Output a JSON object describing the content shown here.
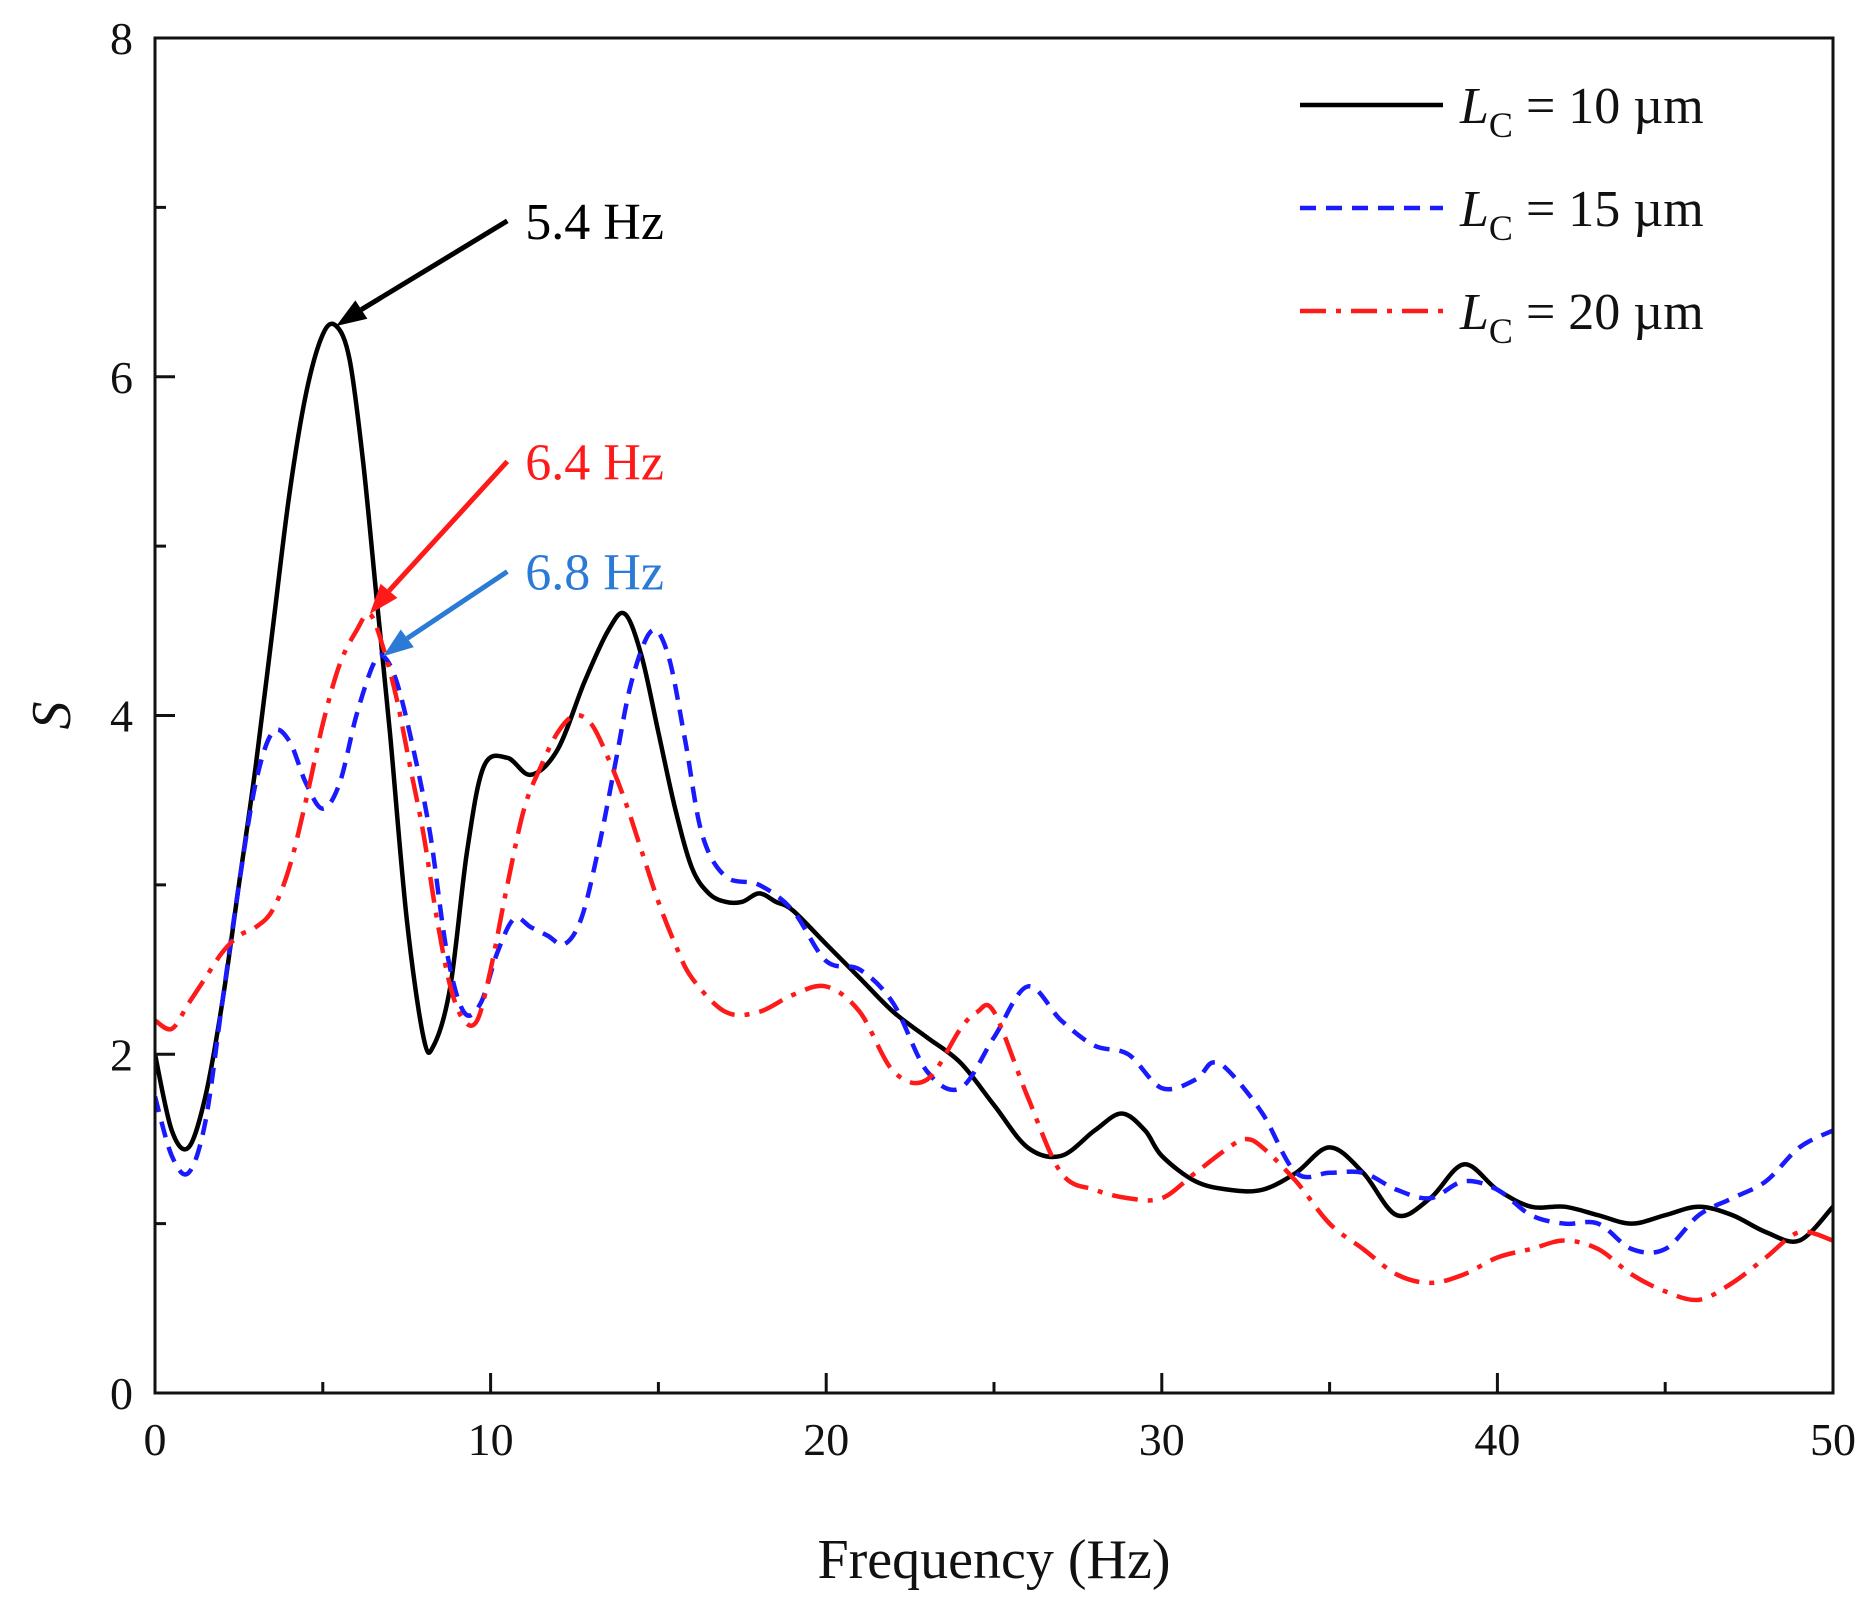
{
  "chart_data": {
    "type": "line",
    "title": "",
    "xlabel": "Frequency (Hz)",
    "ylabel": "S",
    "xlim": [
      0,
      50
    ],
    "ylim": [
      0,
      8
    ],
    "xticks": [
      0,
      10,
      20,
      30,
      40,
      50
    ],
    "xtick_labels": [
      "0",
      "10",
      "20",
      "30",
      "40",
      "50"
    ],
    "yticks": [
      0,
      2,
      4,
      6,
      8
    ],
    "ytick_labels": [
      "0",
      "2",
      "4",
      "6",
      "8"
    ],
    "grid": false,
    "legend_position": "top-right",
    "series": [
      {
        "name": "L_C = 10 µm",
        "legend_symbol": "L",
        "legend_subscript": "C",
        "legend_value": " = 10 µm",
        "color": "#000000",
        "style": "solid",
        "x": [
          0,
          0.5,
          1,
          1.5,
          2,
          2.5,
          3,
          3.5,
          4,
          4.5,
          5,
          5.4,
          5.8,
          6.2,
          6.6,
          7,
          7.5,
          8,
          8.3,
          8.8,
          9.3,
          9.8,
          10.5,
          11.2,
          12,
          12.8,
          13.5,
          14,
          14.5,
          15,
          15.5,
          16,
          16.5,
          17,
          17.5,
          18,
          18.5,
          19,
          20,
          21,
          22,
          23,
          24,
          25,
          26,
          27,
          28,
          28.8,
          29.5,
          30,
          31,
          32,
          33,
          34,
          35,
          36,
          37,
          38,
          39,
          40,
          41,
          42,
          43,
          44,
          45,
          46,
          47,
          48,
          49,
          50
        ],
        "y": [
          2.0,
          1.55,
          1.45,
          1.75,
          2.3,
          3.0,
          3.7,
          4.5,
          5.3,
          5.9,
          6.25,
          6.3,
          6.1,
          5.5,
          4.7,
          3.9,
          2.8,
          2.1,
          2.05,
          2.4,
          3.2,
          3.7,
          3.75,
          3.65,
          3.8,
          4.2,
          4.5,
          4.6,
          4.35,
          3.9,
          3.45,
          3.1,
          2.95,
          2.9,
          2.9,
          2.95,
          2.9,
          2.85,
          2.65,
          2.45,
          2.25,
          2.1,
          1.95,
          1.7,
          1.45,
          1.4,
          1.55,
          1.65,
          1.55,
          1.4,
          1.25,
          1.2,
          1.2,
          1.3,
          1.45,
          1.3,
          1.05,
          1.15,
          1.35,
          1.2,
          1.1,
          1.1,
          1.05,
          1.0,
          1.05,
          1.1,
          1.05,
          0.95,
          0.9,
          1.1
        ]
      },
      {
        "name": "L_C = 15 µm",
        "legend_symbol": "L",
        "legend_subscript": "C",
        "legend_value": " = 15 µm",
        "color": "#1a1aff",
        "style": "dash",
        "x": [
          0,
          0.5,
          1,
          1.5,
          2,
          2.5,
          3,
          3.5,
          4,
          4.5,
          5,
          5.5,
          6,
          6.5,
          6.8,
          7.2,
          7.7,
          8.2,
          8.7,
          9.2,
          9.7,
          10.2,
          10.7,
          11.2,
          11.7,
          12.2,
          12.7,
          13.2,
          13.7,
          14.2,
          14.8,
          15.3,
          15.8,
          16.3,
          17,
          18,
          19,
          20,
          21,
          22,
          23,
          24,
          25,
          26,
          27,
          28,
          29,
          30,
          31,
          31.5,
          32,
          33,
          34,
          35,
          36,
          37,
          38,
          39,
          40,
          41,
          42,
          43,
          44,
          45,
          46,
          47,
          48,
          49,
          50
        ],
        "y": [
          1.75,
          1.4,
          1.3,
          1.6,
          2.3,
          3.0,
          3.6,
          3.9,
          3.85,
          3.6,
          3.45,
          3.6,
          4.0,
          4.3,
          4.35,
          4.2,
          3.8,
          3.3,
          2.6,
          2.25,
          2.3,
          2.6,
          2.8,
          2.75,
          2.7,
          2.65,
          2.8,
          3.2,
          3.7,
          4.2,
          4.5,
          4.35,
          3.85,
          3.3,
          3.05,
          3.0,
          2.85,
          2.55,
          2.5,
          2.3,
          1.9,
          1.8,
          2.1,
          2.4,
          2.2,
          2.05,
          2.0,
          1.8,
          1.85,
          1.95,
          1.9,
          1.65,
          1.3,
          1.3,
          1.3,
          1.2,
          1.15,
          1.25,
          1.2,
          1.05,
          1.0,
          1.0,
          0.85,
          0.85,
          1.05,
          1.15,
          1.25,
          1.45,
          1.55
        ]
      },
      {
        "name": "L_C = 20 µm",
        "legend_symbol": "L",
        "legend_subscript": "C",
        "legend_value": " = 20 µm",
        "color": "#ff1a1a",
        "style": "dashdot",
        "x": [
          0,
          0.5,
          1,
          1.5,
          2,
          2.5,
          3,
          3.5,
          4,
          4.5,
          5,
          5.5,
          6,
          6.4,
          6.8,
          7.2,
          7.6,
          8,
          8.4,
          8.8,
          9.2,
          9.6,
          10,
          10.5,
          11,
          11.5,
          12,
          12.5,
          13,
          13.5,
          14,
          14.5,
          15,
          15.5,
          16,
          17,
          18,
          19,
          20,
          21,
          22,
          23,
          24,
          24.5,
          25,
          26,
          27,
          28,
          29,
          30,
          31,
          32,
          32.5,
          33,
          34,
          35,
          36,
          37,
          38,
          39,
          40,
          41,
          42,
          43,
          44,
          45,
          46,
          47,
          48,
          49,
          50
        ],
        "y": [
          2.2,
          2.15,
          2.3,
          2.45,
          2.6,
          2.7,
          2.75,
          2.85,
          3.1,
          3.5,
          3.95,
          4.3,
          4.5,
          4.6,
          4.4,
          4.1,
          3.7,
          3.3,
          2.8,
          2.4,
          2.2,
          2.2,
          2.5,
          3.0,
          3.45,
          3.7,
          3.9,
          4.0,
          3.95,
          3.75,
          3.5,
          3.2,
          2.9,
          2.65,
          2.45,
          2.25,
          2.25,
          2.35,
          2.4,
          2.25,
          1.9,
          1.85,
          2.15,
          2.25,
          2.25,
          1.75,
          1.3,
          1.2,
          1.15,
          1.15,
          1.3,
          1.45,
          1.5,
          1.45,
          1.25,
          1.0,
          0.85,
          0.7,
          0.65,
          0.7,
          0.8,
          0.85,
          0.9,
          0.85,
          0.7,
          0.6,
          0.55,
          0.65,
          0.8,
          0.95,
          0.9
        ]
      }
    ],
    "annotations": [
      {
        "text": "5.4 Hz",
        "color": "#000000",
        "point": [
          5.4,
          6.3
        ],
        "text_at": [
          10.2,
          6.92
        ]
      },
      {
        "text": "6.4 Hz",
        "color": "#ff1a1a",
        "point": [
          6.4,
          4.6
        ],
        "text_at": [
          10.2,
          5.5
        ]
      },
      {
        "text": "6.8 Hz",
        "color": "#2b7bd6",
        "point": [
          6.8,
          4.35
        ],
        "text_at": [
          10.2,
          4.85
        ]
      }
    ]
  }
}
